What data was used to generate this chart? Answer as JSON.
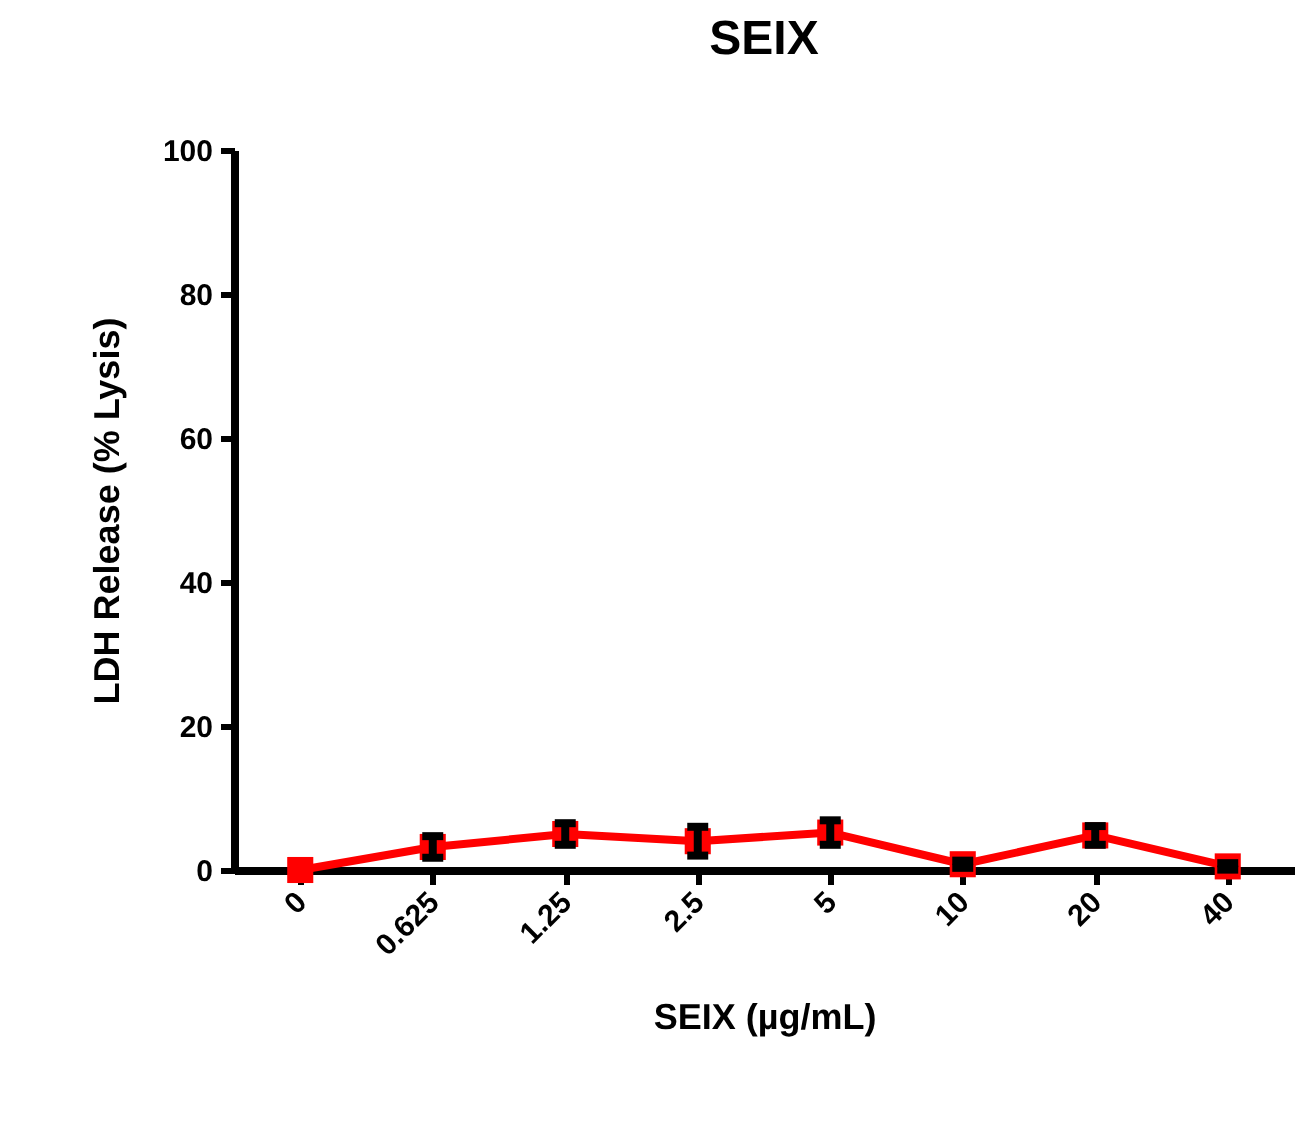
{
  "chart_data": {
    "type": "line",
    "title": "SEIX",
    "xlabel": "SEIX (µg/mL)",
    "ylabel": "LDH Release (% Lysis)",
    "categories": [
      "0",
      "0.625",
      "1.25",
      "2.5",
      "5",
      "10",
      "20",
      "40"
    ],
    "series": [
      {
        "color": "#ff0000",
        "values": [
          0,
          3.2,
          5,
          4,
          5.2,
          0.8,
          4.8,
          0.5
        ],
        "errors": [
          null,
          1.5,
          1.5,
          2,
          1.7,
          0.5,
          1.3,
          0.45
        ]
      }
    ],
    "ylim": [
      0,
      100
    ],
    "yticks": [
      0,
      20,
      40,
      60,
      80,
      100
    ],
    "marker": "square",
    "line_style": "solid"
  }
}
